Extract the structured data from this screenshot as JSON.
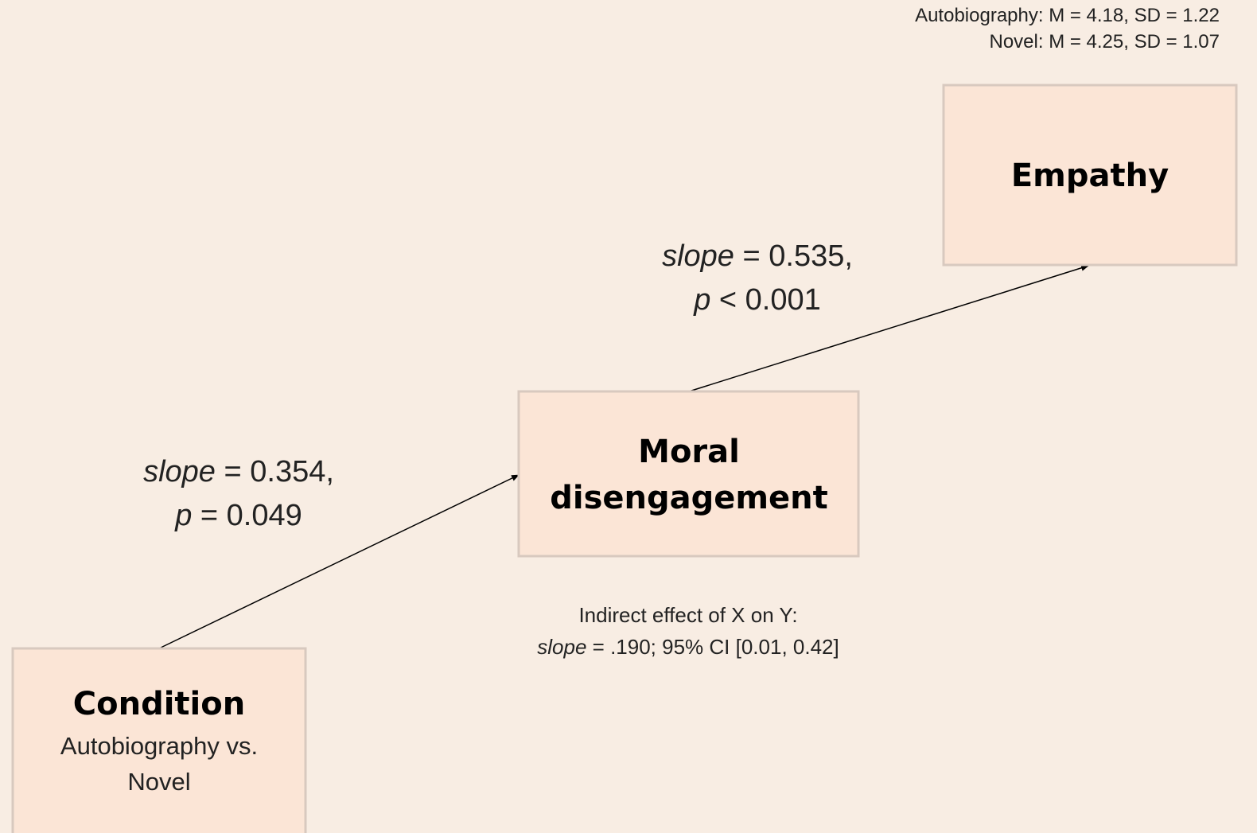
{
  "note": {
    "lines": [
      "Autobiography: M = 4.18, SD = 1.22",
      "Novel: M = 4.25, SD = 1.07"
    ]
  },
  "nodes": [
    {
      "label": "Empathy"
    },
    {
      "label_lines": [
        "Moral",
        "disengagement"
      ]
    },
    {
      "label": "Condition",
      "sublabel_lines": [
        "Autobiography vs.",
        "Novel"
      ]
    }
  ],
  "edges": [
    {
      "from": "Condition",
      "to": "Moral disengagement",
      "lines": [
        {
          "term": "slope",
          "text": "= 0.354,"
        },
        {
          "term": "p",
          "text": "= 0.049"
        }
      ]
    },
    {
      "from": "Moral disengagement",
      "to": "Empathy",
      "lines": [
        {
          "term": "slope",
          "text": "= 0.535,"
        },
        {
          "term": "p",
          "text": "< 0.001"
        }
      ]
    }
  ],
  "indirect": {
    "heading": "Indirect effect of X on Y:",
    "term": "slope",
    "text": "= .190; 95% CI [0.01, 0.42]"
  }
}
